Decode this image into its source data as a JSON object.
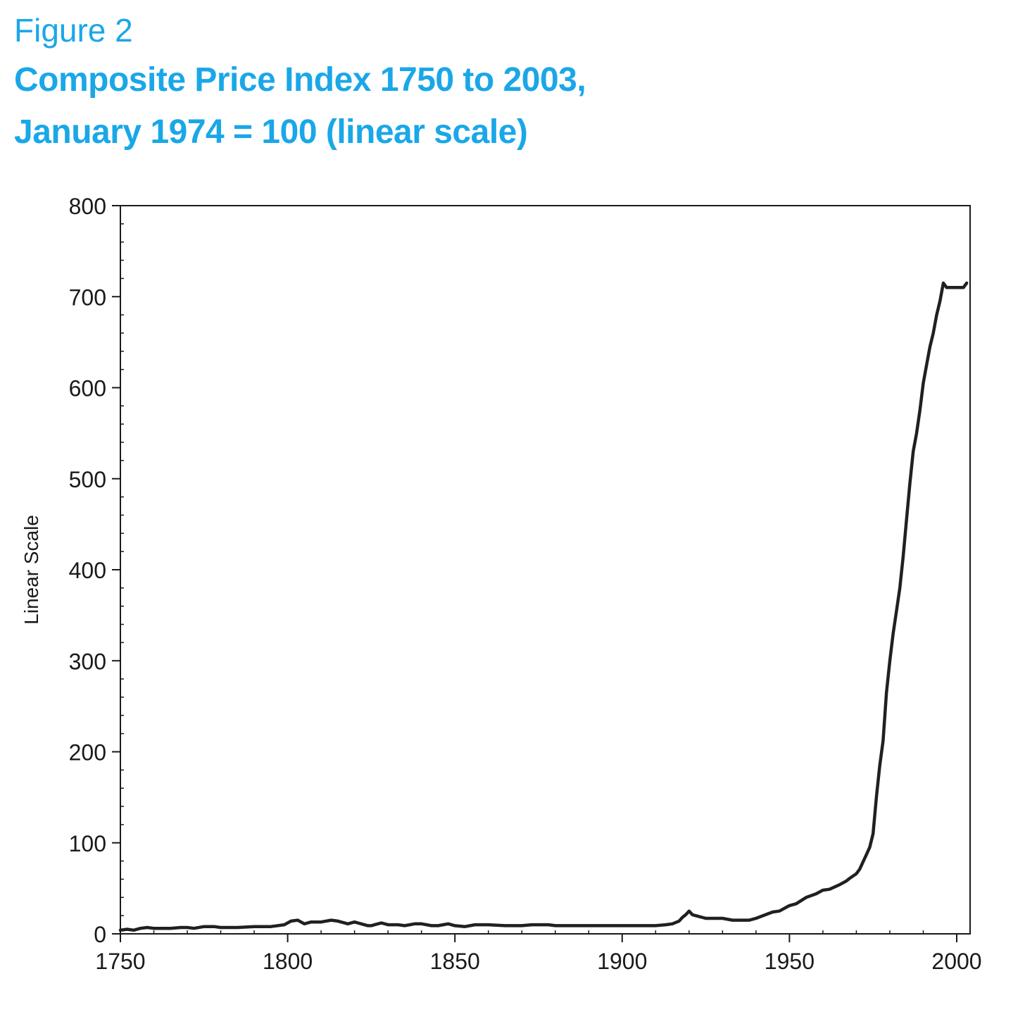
{
  "figure_label": "Figure 2",
  "title_lines": [
    "Composite Price Index 1750 to 2003,",
    "January 1974 = 100 (linear scale)"
  ],
  "colors": {
    "title": "#1aa7e8",
    "line": "#231f20",
    "axis": "#1a1a1a"
  },
  "chart_data": {
    "type": "line",
    "title": "Composite Price Index 1750 to 2003, January 1974 = 100 (linear scale)",
    "xlabel": "",
    "ylabel": "Linear Scale",
    "xlim": [
      1750,
      2004
    ],
    "ylim": [
      0,
      800
    ],
    "x_ticks": [
      1750,
      1800,
      1850,
      1900,
      1950,
      2000
    ],
    "y_ticks": [
      0,
      100,
      200,
      300,
      400,
      500,
      600,
      700,
      800
    ],
    "grid": false,
    "legend": "none",
    "series": [
      {
        "x": [
          1750,
          1752,
          1754,
          1756,
          1758,
          1760,
          1765,
          1768,
          1770,
          1772,
          1775,
          1778,
          1780,
          1785,
          1790,
          1795,
          1799,
          1801,
          1803,
          1805,
          1807,
          1810,
          1813,
          1815,
          1818,
          1820,
          1822,
          1824,
          1825,
          1826,
          1828,
          1830,
          1833,
          1835,
          1838,
          1840,
          1843,
          1845,
          1848,
          1850,
          1853,
          1856,
          1860,
          1865,
          1868,
          1870,
          1873,
          1878,
          1880,
          1890,
          1900,
          1910,
          1913,
          1915,
          1917,
          1918,
          1919,
          1920,
          1921,
          1922,
          1925,
          1930,
          1933,
          1938,
          1940,
          1945,
          1947,
          1950,
          1952,
          1955,
          1958,
          1960,
          1962,
          1965,
          1967,
          1968,
          1970,
          1971,
          1972,
          1973,
          1974,
          1975,
          1976,
          1977,
          1978,
          1979,
          1980,
          1981,
          1982,
          1983,
          1984,
          1985,
          1986,
          1987,
          1988,
          1989,
          1990,
          1991,
          1992,
          1993,
          1994,
          1995,
          1996,
          1997,
          1998,
          1999,
          2000,
          2001,
          2002,
          2003
        ],
        "values": [
          4,
          5,
          4,
          6,
          7,
          6,
          6,
          7,
          7,
          6,
          8,
          8,
          7,
          7,
          8,
          8,
          10,
          14,
          15,
          11,
          13,
          13,
          15,
          14,
          11,
          13,
          11,
          9,
          9,
          10,
          12,
          10,
          10,
          9,
          11,
          11,
          9,
          9,
          11,
          9,
          8,
          10,
          10,
          9,
          9,
          9,
          10,
          10,
          9,
          9,
          9,
          9,
          10,
          11,
          14,
          18,
          21,
          25,
          21,
          20,
          17,
          17,
          15,
          15,
          17,
          24,
          25,
          31,
          33,
          40,
          44,
          48,
          49,
          54,
          58,
          61,
          66,
          71,
          79,
          87,
          95,
          110,
          150,
          185,
          212,
          265,
          300,
          330,
          355,
          380,
          415,
          455,
          495,
          530,
          550,
          575,
          605,
          625,
          645,
          660,
          680,
          695,
          715,
          710,
          710,
          710,
          710,
          710,
          710,
          715
        ]
      }
    ]
  }
}
